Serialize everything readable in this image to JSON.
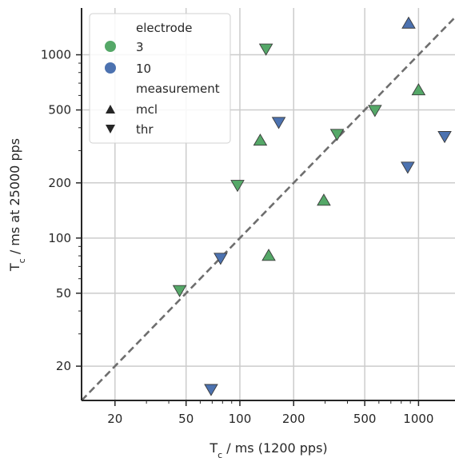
{
  "chart_data": {
    "type": "scatter",
    "xscale": "log",
    "yscale": "log",
    "xlim": [
      13,
      1600
    ],
    "ylim": [
      13,
      1800
    ],
    "xlabel": {
      "main": "T",
      "sub": "c",
      "rest": " / ms (1200 pps)"
    },
    "ylabel": {
      "main": "T",
      "sub": "c",
      "rest": " / ms at 25000 pps"
    },
    "xticks": [
      {
        "value": 20,
        "label": "20"
      },
      {
        "value": 50,
        "label": "50"
      },
      {
        "value": 100,
        "label": "100"
      },
      {
        "value": 200,
        "label": "200"
      },
      {
        "value": 500,
        "label": "500"
      },
      {
        "value": 1000,
        "label": "1000"
      }
    ],
    "yticks": [
      {
        "value": 20,
        "label": "20"
      },
      {
        "value": 50,
        "label": "50"
      },
      {
        "value": 100,
        "label": "100"
      },
      {
        "value": 200,
        "label": "200"
      },
      {
        "value": 500,
        "label": "500"
      },
      {
        "value": 1000,
        "label": "1000"
      }
    ],
    "grid": true,
    "reference_line": {
      "style": "dashed",
      "description": "identity y = x",
      "color": "#6e6e6e"
    },
    "legend": {
      "position": "top-left",
      "hue_title": "electrode",
      "hue_items": [
        {
          "label": "3",
          "color": "#55a868"
        },
        {
          "label": "10",
          "color": "#4c72b0"
        }
      ],
      "style_title": "measurement",
      "style_items": [
        {
          "label": "mcl",
          "marker": "triangle-up"
        },
        {
          "label": "thr",
          "marker": "triangle-down"
        }
      ]
    },
    "points": [
      {
        "electrode": "3",
        "measurement": "mcl",
        "x": 130,
        "y": 340
      },
      {
        "electrode": "3",
        "measurement": "mcl",
        "x": 145,
        "y": 80
      },
      {
        "electrode": "3",
        "measurement": "mcl",
        "x": 295,
        "y": 160
      },
      {
        "electrode": "3",
        "measurement": "mcl",
        "x": 1000,
        "y": 640
      },
      {
        "electrode": "3",
        "measurement": "thr",
        "x": 46,
        "y": 52
      },
      {
        "electrode": "3",
        "measurement": "thr",
        "x": 97,
        "y": 195
      },
      {
        "electrode": "3",
        "measurement": "thr",
        "x": 140,
        "y": 1080
      },
      {
        "electrode": "3",
        "measurement": "thr",
        "x": 350,
        "y": 370
      },
      {
        "electrode": "3",
        "measurement": "thr",
        "x": 570,
        "y": 500
      },
      {
        "electrode": "10",
        "measurement": "mcl",
        "x": 880,
        "y": 1480
      },
      {
        "electrode": "10",
        "measurement": "thr",
        "x": 69,
        "y": 15
      },
      {
        "electrode": "10",
        "measurement": "thr",
        "x": 78,
        "y": 78
      },
      {
        "electrode": "10",
        "measurement": "thr",
        "x": 165,
        "y": 430
      },
      {
        "electrode": "10",
        "measurement": "thr",
        "x": 870,
        "y": 245
      },
      {
        "electrode": "10",
        "measurement": "thr",
        "x": 1400,
        "y": 360
      }
    ]
  }
}
